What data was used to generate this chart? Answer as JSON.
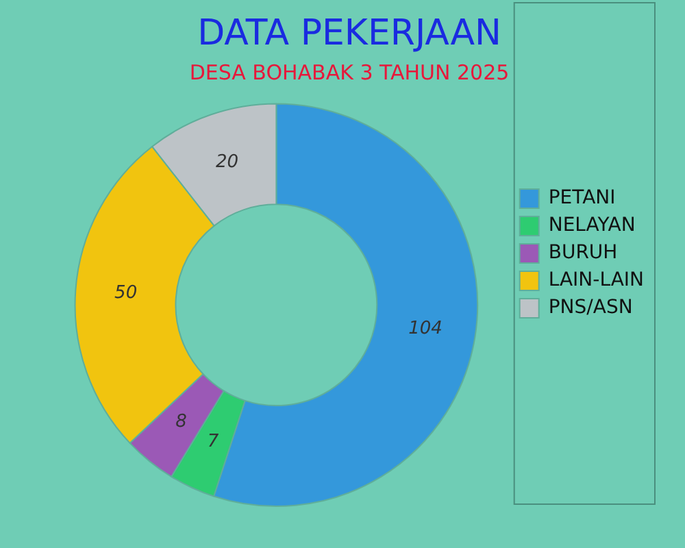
{
  "chart_data": {
    "type": "donut",
    "title": "DATA PEKERJAAN",
    "subtitle": "DESA BOHABAK 3 TAHUN 2025",
    "categories": [
      "PETANI",
      "NELAYAN",
      "BURUH",
      "LAIN-LAIN",
      "PNS/ASN"
    ],
    "values": [
      104,
      7,
      8,
      50,
      20
    ],
    "colors": [
      "#3498db",
      "#2ecc71",
      "#9b59b6",
      "#f1c40f",
      "#bdc3c7"
    ],
    "data_labels": true,
    "legend": "right"
  }
}
